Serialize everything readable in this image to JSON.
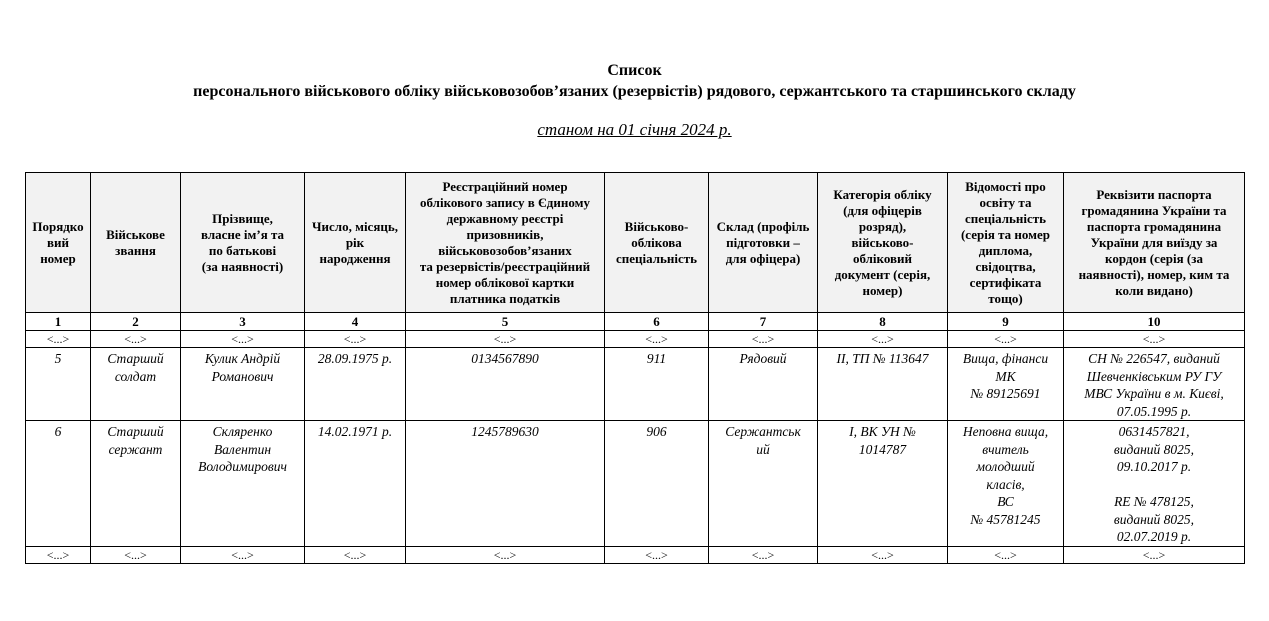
{
  "document": {
    "title": "Список",
    "subtitle": "персонального військового обліку військовозобов’язаних (резервістів) рядового, сержантського та старшинського складу",
    "as_of": "станом на 01 січня 2024 р."
  },
  "table": {
    "headers": [
      "Порядко\nвий\nномер",
      "Військове\nзвання",
      "Прізвище,\nвласне ім’я та\nпо батькові\n(за наявності)",
      "Число, місяць,\nрік\nнародження",
      "Реєстраційний номер\nоблікового запису в Єдиному\nдержавному реєстрі\nпризовників,\nвійськовозобов’язаних\nта резервістів/реєстраційний\nномер облікової картки\nплатника податків",
      "Військово-\nоблікова\nспеціальність",
      "Склад (профіль\nпідготовки –\nдля офіцера)",
      "Категорія обліку\n(для офіцерів\nрозряд),\nвійськово-\nобліковий\nдокумент (серія,\nномер)",
      "Відомості про\nосвіту та\nспеціальність\n(серія та номер\nдиплома,\nсвідоцтва,\nсертифіката\nтощо)",
      "Реквізити паспорта\nгромадянина України та\nпаспорта громадянина\nУкраїни для виїзду за\nкордон (серія (за\nнаявності), номер, ким та\nколи видано)"
    ],
    "column_numbers": [
      "1",
      "2",
      "3",
      "4",
      "5",
      "6",
      "7",
      "8",
      "9",
      "10"
    ],
    "ellipsis": "<...>",
    "rows": [
      [
        "5",
        "Старший\nсолдат",
        "Кулик Андрій\nРоманович",
        "28.09.1975 р.",
        "0134567890",
        "911",
        "Рядовий",
        "ІІ, ТП № 113647",
        "Вища, фінанси\nМК\n№ 89125691",
        "СН № 226547, виданий\nШевченківським РУ ГУ\nМВС України в м. Києві,\n07.05.1995 р."
      ],
      [
        "6",
        "Старший\nсержант",
        "Скляренко\nВалентин\nВолодимирович",
        "14.02.1971 р.",
        "1245789630",
        "906",
        "Сержантськ\nий",
        "І, ВК УН №\n1014787",
        "Неповна вища,\nвчитель\nмолодший\nкласів,\nВС\n№ 45781245",
        "0631457821,\nвиданий 8025,\n09.10.2017 р.\n\nRE № 478125,\nвиданий 8025,\n02.07.2019 р."
      ]
    ]
  }
}
